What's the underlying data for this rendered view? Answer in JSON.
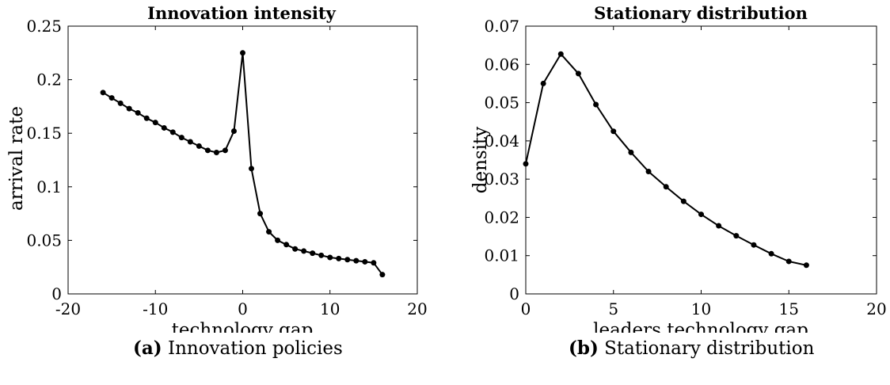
{
  "chart_data": [
    {
      "type": "line",
      "title": "Innovation intensity",
      "xlabel": "technology gap",
      "ylabel": "arrival rate",
      "xlim": [
        -20,
        20
      ],
      "ylim": [
        0,
        0.25
      ],
      "xticks": [
        -20,
        -10,
        0,
        10,
        20
      ],
      "xtick_labels": [
        "-20",
        "-10",
        "0",
        "10",
        "20"
      ],
      "yticks": [
        0,
        0.05,
        0.1,
        0.15,
        0.2,
        0.25
      ],
      "ytick_labels": [
        "0",
        "0.05",
        "0.1",
        "0.15",
        "0.2",
        "0.25"
      ],
      "grid": false,
      "markers": true,
      "series": [
        {
          "x": [
            -16,
            -15,
            -14,
            -13,
            -12,
            -11,
            -10,
            -9,
            -8,
            -7,
            -6,
            -5,
            -4,
            -3,
            -2,
            -1,
            0,
            1,
            2,
            3,
            4,
            5,
            6,
            7,
            8,
            9,
            10,
            11,
            12,
            13,
            14,
            15,
            16
          ],
          "y": [
            0.188,
            0.183,
            0.178,
            0.173,
            0.169,
            0.164,
            0.16,
            0.155,
            0.151,
            0.146,
            0.142,
            0.138,
            0.134,
            0.132,
            0.134,
            0.152,
            0.225,
            0.117,
            0.075,
            0.058,
            0.05,
            0.046,
            0.042,
            0.04,
            0.038,
            0.036,
            0.034,
            0.033,
            0.032,
            0.031,
            0.03,
            0.029,
            0.018
          ]
        }
      ]
    },
    {
      "type": "line",
      "title": "Stationary distribution",
      "xlabel": "leaders technology gap",
      "ylabel": "density",
      "xlim": [
        0,
        20
      ],
      "ylim": [
        0,
        0.07
      ],
      "xticks": [
        0,
        5,
        10,
        15,
        20
      ],
      "xtick_labels": [
        "0",
        "5",
        "10",
        "15",
        "20"
      ],
      "yticks": [
        0,
        0.01,
        0.02,
        0.03,
        0.04,
        0.05,
        0.06,
        0.07
      ],
      "ytick_labels": [
        "0",
        "0.01",
        "0.02",
        "0.03",
        "0.04",
        "0.05",
        "0.06",
        "0.07"
      ],
      "grid": false,
      "markers": true,
      "series": [
        {
          "x": [
            0,
            1,
            2,
            3,
            4,
            5,
            6,
            7,
            8,
            9,
            10,
            11,
            12,
            13,
            14,
            15,
            16
          ],
          "y": [
            0.034,
            0.055,
            0.0627,
            0.0576,
            0.0495,
            0.0425,
            0.037,
            0.032,
            0.028,
            0.0242,
            0.0208,
            0.0178,
            0.0152,
            0.0128,
            0.0105,
            0.0085,
            0.0075
          ]
        }
      ]
    }
  ],
  "captions": [
    {
      "tag": "(a)",
      "text": "Innovation policies"
    },
    {
      "tag": "(b)",
      "text": "Stationary distribution"
    }
  ]
}
